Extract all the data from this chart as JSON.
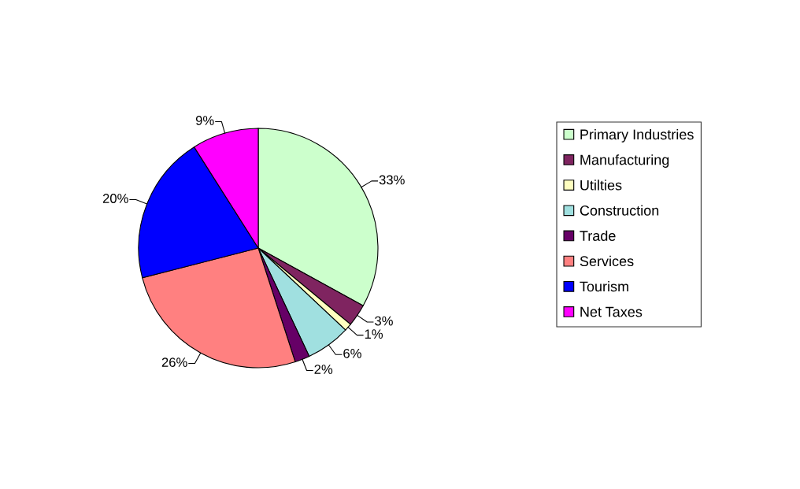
{
  "chart_data": {
    "type": "pie",
    "categories": [
      "Primary Industries",
      "Manufacturing",
      "Utilties",
      "Construction",
      "Trade",
      "Services",
      "Tourism",
      "Net Taxes"
    ],
    "values": [
      33,
      3,
      1,
      6,
      2,
      26,
      20,
      9
    ],
    "value_labels": [
      "33%",
      "3%",
      "1%",
      "6%",
      "2%",
      "26%",
      "20%",
      "9%"
    ],
    "colors": [
      "#ccffcc",
      "#7f2460",
      "#ffffc0",
      "#a0e0e0",
      "#660066",
      "#ff8080",
      "#0000ff",
      "#ff00ff"
    ],
    "legend": "right"
  }
}
